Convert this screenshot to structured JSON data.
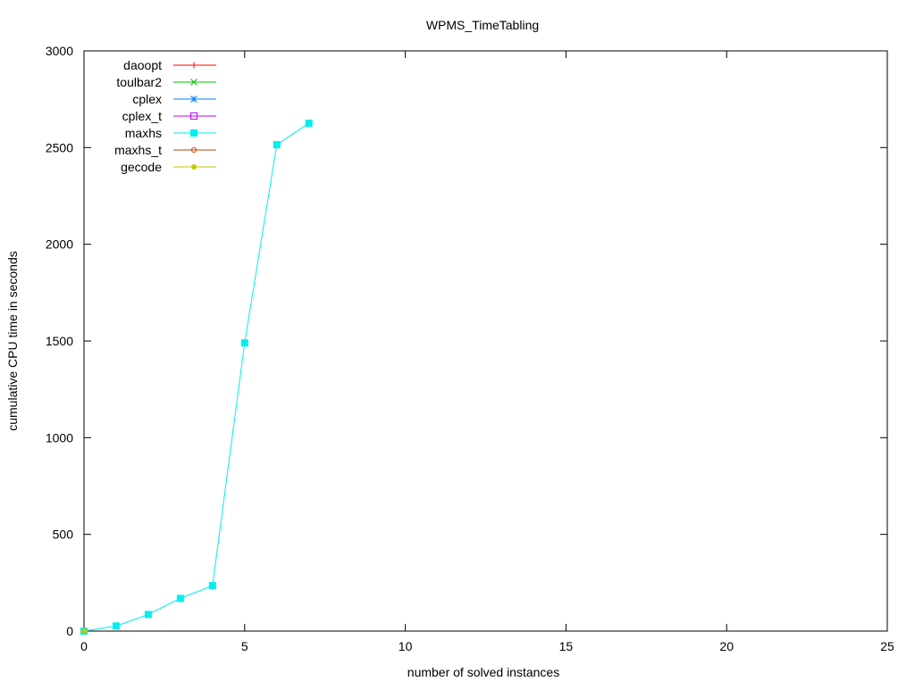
{
  "chart_data": {
    "type": "line",
    "title": "WPMS_TimeTabling",
    "xlabel": "number of solved instances",
    "ylabel": "cumulative CPU time in seconds",
    "xlim": [
      0,
      25
    ],
    "ylim": [
      0,
      3000
    ],
    "xticks": [
      0,
      5,
      10,
      15,
      20,
      25
    ],
    "yticks": [
      0,
      500,
      1000,
      1500,
      2000,
      2500,
      3000
    ],
    "grid": false,
    "legend_position": "top-left",
    "series": [
      {
        "name": "daoopt",
        "color": "#ff0000",
        "marker": "plus",
        "points": [
          [
            0,
            0
          ]
        ]
      },
      {
        "name": "toulbar2",
        "color": "#00c000",
        "marker": "cross",
        "points": [
          [
            0,
            0
          ]
        ]
      },
      {
        "name": "cplex",
        "color": "#0080ff",
        "marker": "star",
        "points": [
          [
            0,
            0
          ]
        ]
      },
      {
        "name": "cplex_t",
        "color": "#c000ff",
        "marker": "open-square",
        "points": [
          [
            0,
            0
          ]
        ]
      },
      {
        "name": "maxhs",
        "color": "#00eeee",
        "marker": "filled-square",
        "points": [
          [
            0,
            0
          ],
          [
            1,
            26
          ],
          [
            2,
            86
          ],
          [
            3,
            169
          ],
          [
            4,
            235
          ],
          [
            5,
            1490
          ],
          [
            6,
            2515
          ],
          [
            7,
            2626
          ]
        ]
      },
      {
        "name": "maxhs_t",
        "color": "#c04000",
        "marker": "open-circle",
        "points": [
          [
            0,
            0
          ]
        ]
      },
      {
        "name": "gecode",
        "color": "#c8c800",
        "marker": "filled-circle",
        "points": [
          [
            0,
            0
          ]
        ]
      }
    ]
  }
}
